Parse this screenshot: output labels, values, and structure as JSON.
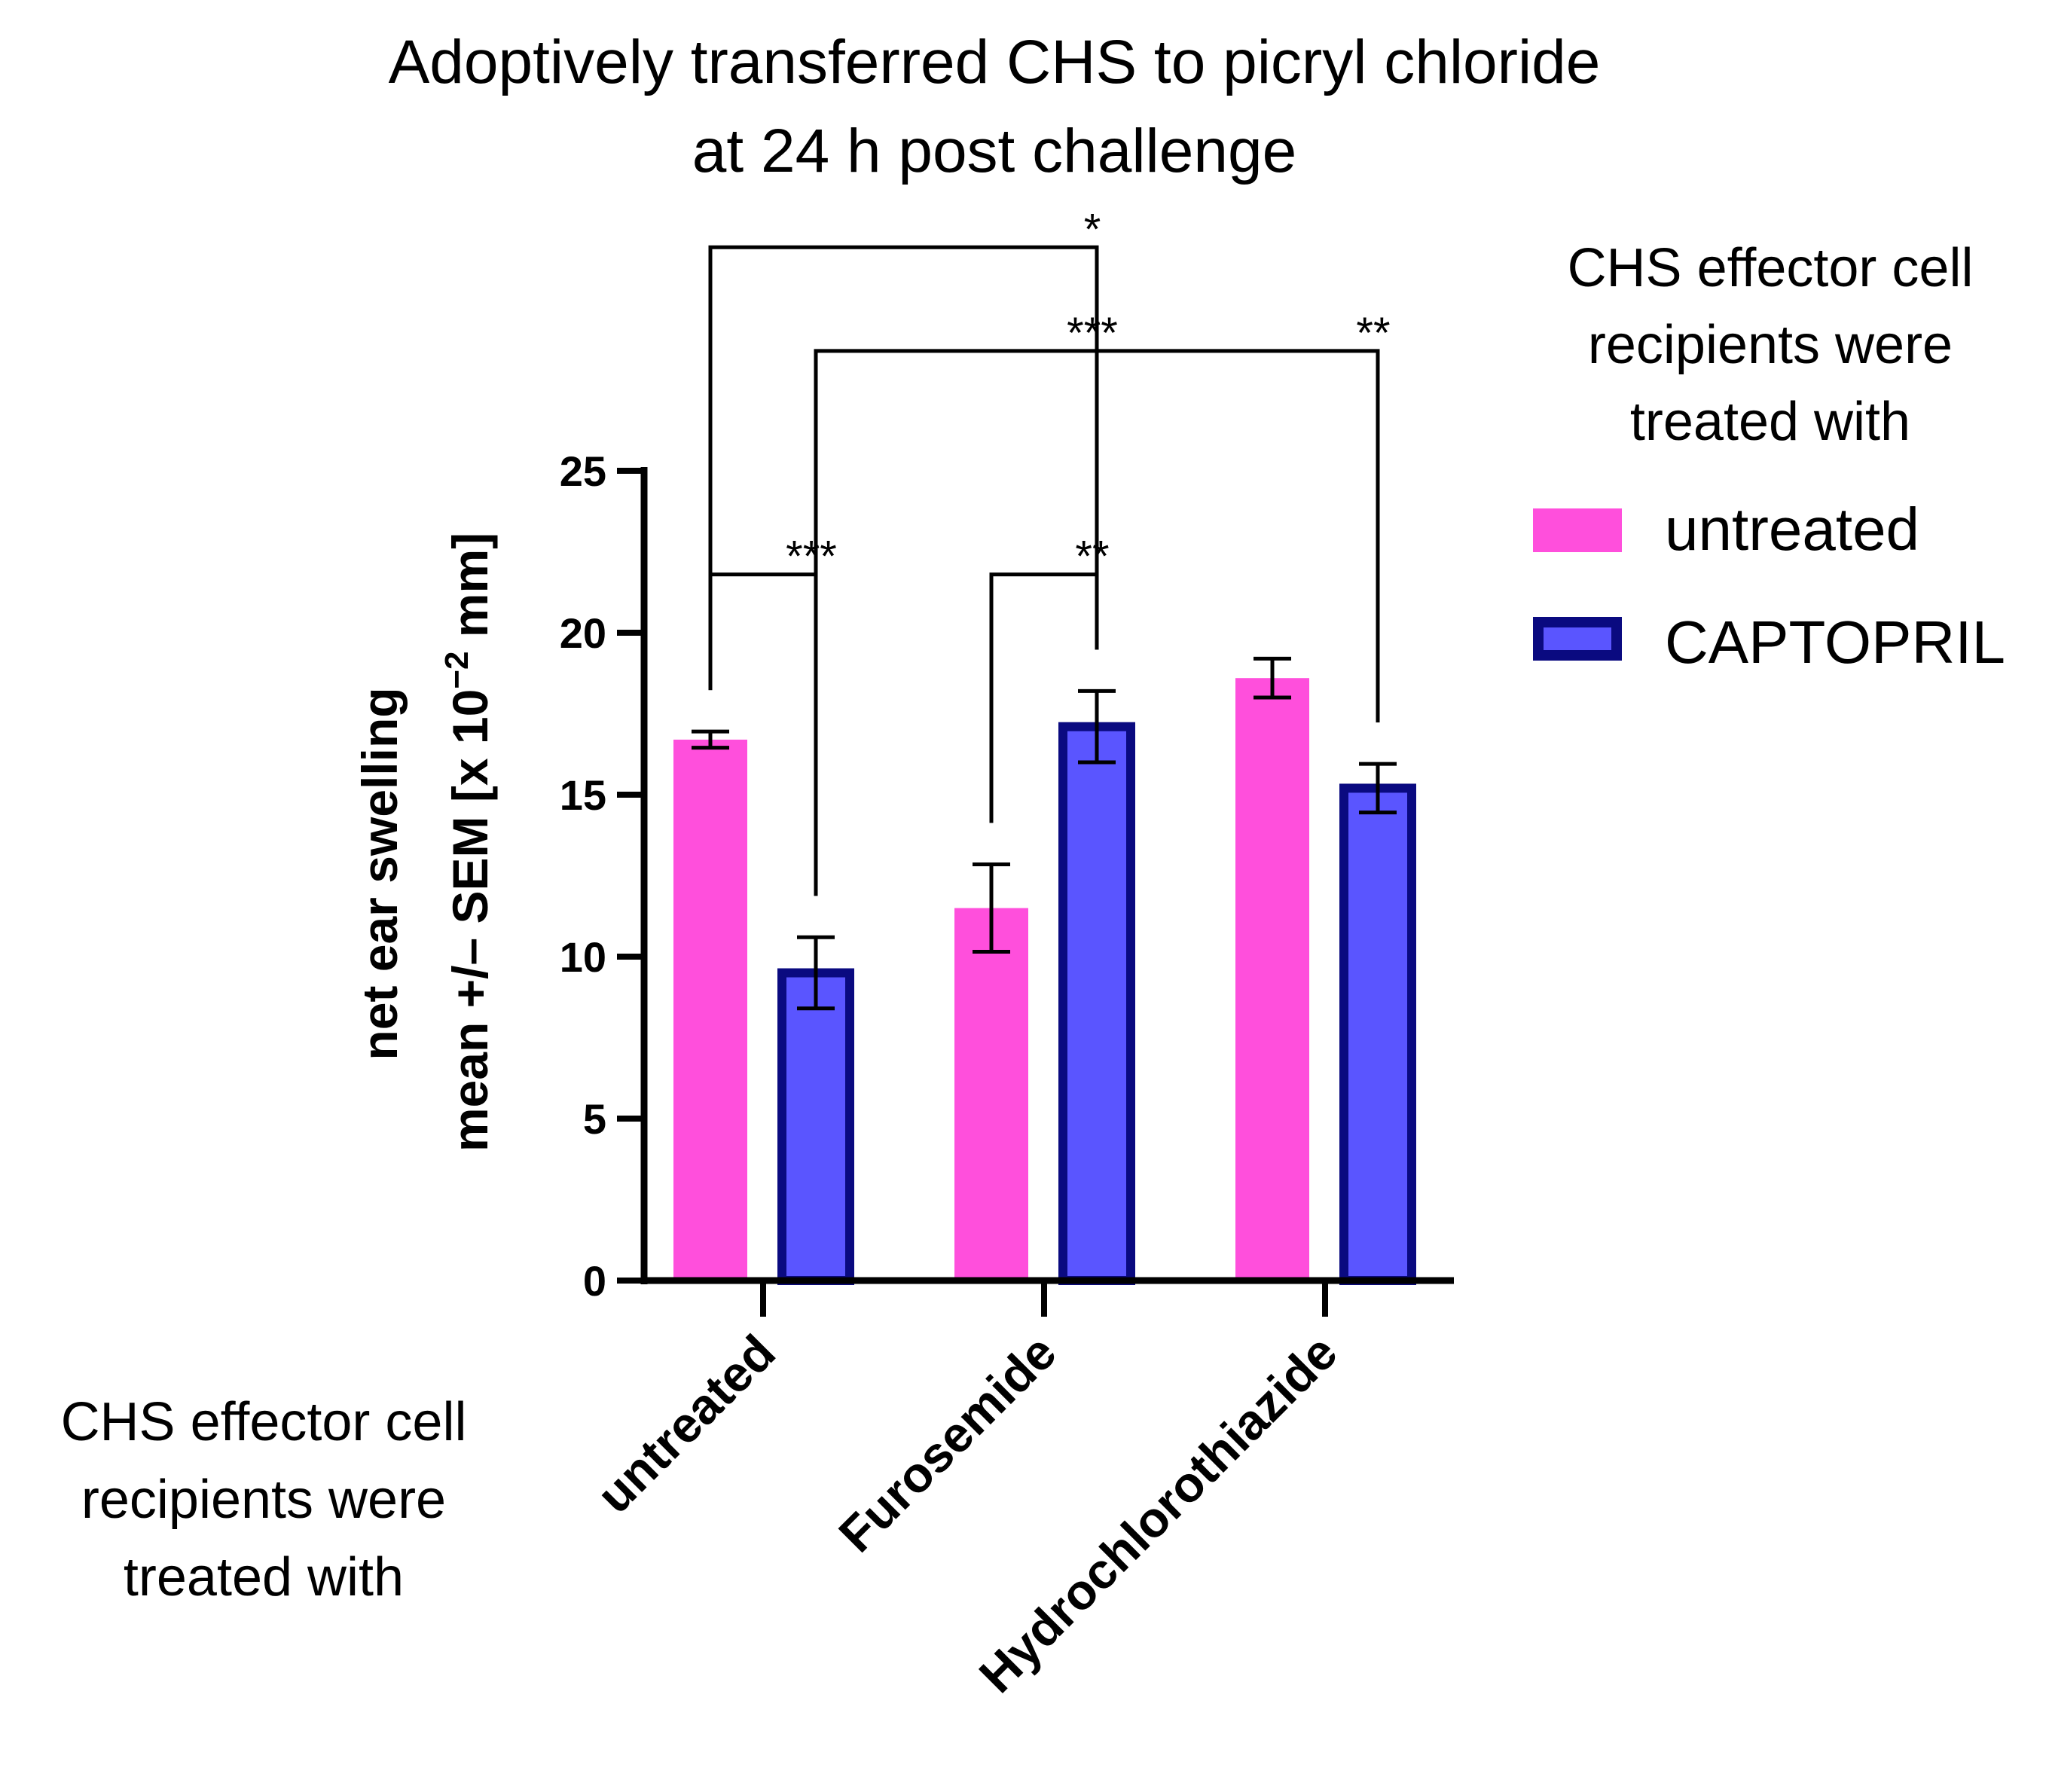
{
  "chart_data": {
    "type": "bar",
    "title_lines": [
      "Adoptively transferred CHS to picryl chloride",
      "at 24 h post challenge"
    ],
    "ylabel_lines": [
      "net ear swelling",
      "mean +/– SEM [x 10",
      "−2",
      " mm]"
    ],
    "xlabel_lines": [
      "CHS effector cell",
      "recipients were",
      "treated with"
    ],
    "categories": [
      "untreated",
      "Furosemide",
      "Hydrochlorothiazide"
    ],
    "ylim": [
      0,
      25
    ],
    "yticks": [
      "0",
      "5",
      "10",
      "15",
      "20",
      "25"
    ],
    "legend": {
      "title_lines": [
        "CHS effector cell",
        "recipients were",
        "treated with"
      ],
      "position": "right"
    },
    "series": [
      {
        "name": "untreated",
        "color": "#ff4fdc",
        "edge": "#ff4fdc",
        "values": [
          16.7,
          11.5,
          18.6
        ],
        "errors": [
          0.25,
          1.35,
          0.6
        ]
      },
      {
        "name": "CAPTOPRIL",
        "color": "#5a55ff",
        "edge": "#0a0a80",
        "values": [
          9.5,
          17.1,
          15.2
        ],
        "errors": [
          1.1,
          1.1,
          0.75
        ]
      }
    ],
    "significance": [
      {
        "label": "*",
        "from": [
          0,
          0
        ],
        "to": [
          1,
          1
        ],
        "y": 31.9
      },
      {
        "label": "***",
        "from": [
          0,
          1
        ],
        "to": [
          1,
          1
        ],
        "y": 28.7
      },
      {
        "label": "**",
        "from": [
          1,
          1
        ],
        "to": [
          2,
          1
        ],
        "y": 28.7
      },
      {
        "label": "***",
        "from": [
          0,
          0
        ],
        "to": [
          0,
          1
        ],
        "y": 21.8
      },
      {
        "label": "**",
        "from": [
          1,
          0
        ],
        "to": [
          1,
          1
        ],
        "y": 21.8
      }
    ]
  }
}
